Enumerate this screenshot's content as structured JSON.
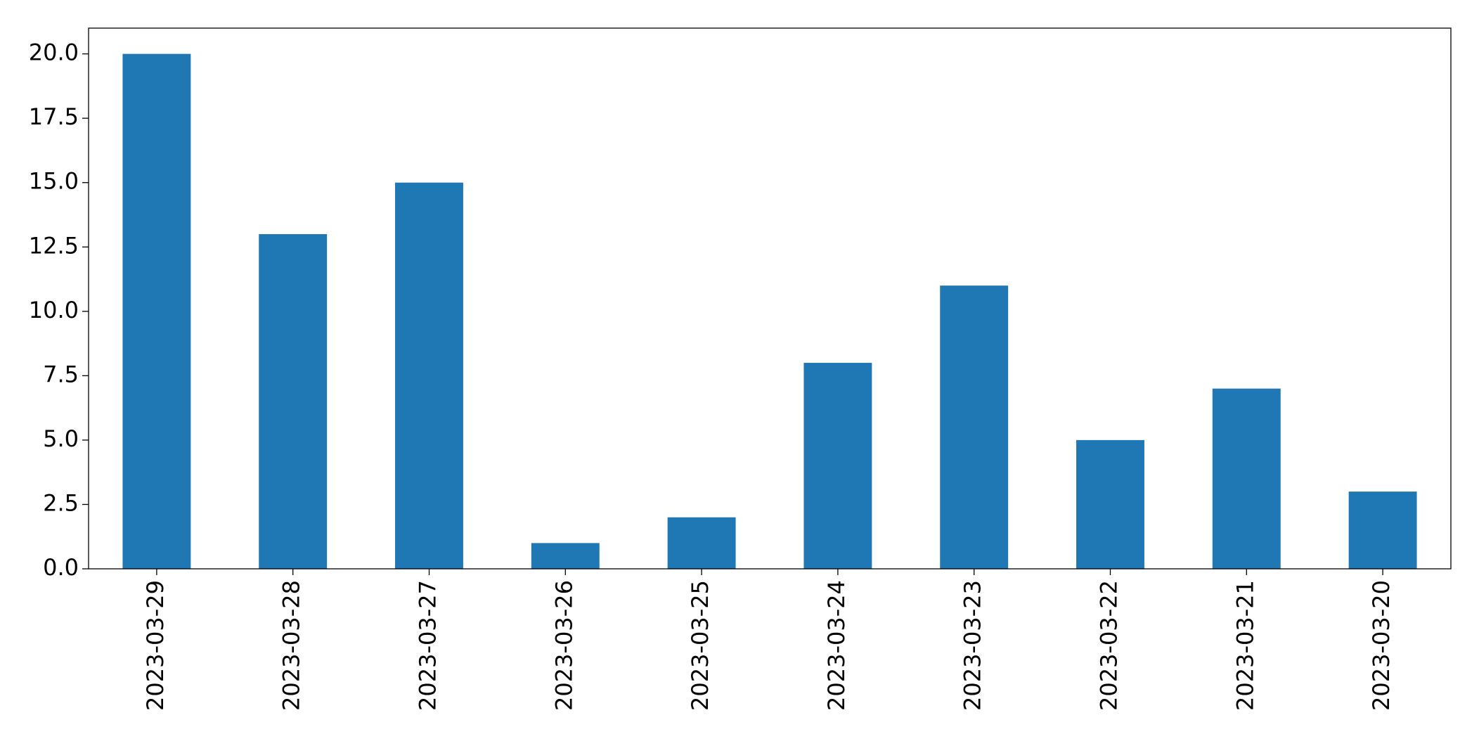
{
  "chart_data": {
    "type": "bar",
    "categories": [
      "2023-03-29",
      "2023-03-28",
      "2023-03-27",
      "2023-03-26",
      "2023-03-25",
      "2023-03-24",
      "2023-03-23",
      "2023-03-22",
      "2023-03-21",
      "2023-03-20"
    ],
    "values": [
      20,
      13,
      15,
      1,
      2,
      8,
      11,
      5,
      7,
      3
    ],
    "color": "#1f77b4",
    "ylim": [
      0,
      21
    ],
    "yticks": [
      {
        "value": 0,
        "label": "0.0"
      },
      2.5,
      {
        "value": 5,
        "label": "5.0"
      },
      7.5,
      {
        "value": 10,
        "label": "10.0"
      },
      12.5,
      {
        "value": 15,
        "label": "15.0"
      },
      17.5,
      {
        "value": 20,
        "label": "20.0"
      }
    ],
    "grid": false
  }
}
